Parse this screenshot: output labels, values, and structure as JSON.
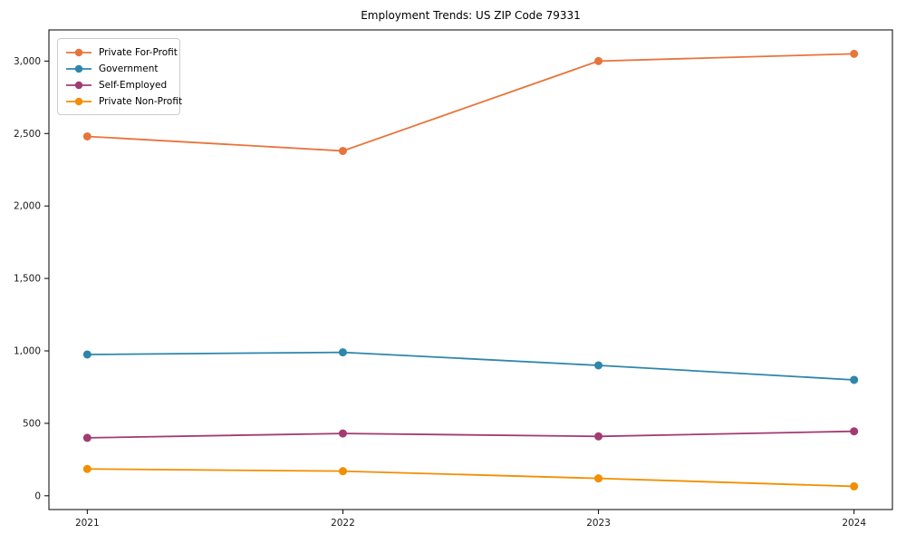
{
  "chart_data": {
    "type": "line",
    "title": "Employment Trends: US ZIP Code 79331",
    "x": [
      2021,
      2022,
      2023,
      2024
    ],
    "categories": [
      "2021",
      "2022",
      "2023",
      "2024"
    ],
    "series": [
      {
        "name": "Private For-Profit",
        "color": "#e8743b",
        "values": [
          2480,
          2380,
          3000,
          3050
        ]
      },
      {
        "name": "Government",
        "color": "#2e86ab",
        "values": [
          975,
          990,
          900,
          800
        ]
      },
      {
        "name": "Self-Employed",
        "color": "#a23b72",
        "values": [
          400,
          430,
          410,
          445
        ]
      },
      {
        "name": "Private Non-Profit",
        "color": "#f18f01",
        "values": [
          185,
          170,
          120,
          65
        ]
      }
    ],
    "xlabel": "",
    "ylabel": "",
    "xlim": [
      2020.85,
      2024.15
    ],
    "ylim": [
      -95,
      3215
    ],
    "ytick_values": [
      0,
      500,
      1000,
      1500,
      2000,
      2500,
      3000
    ],
    "ytick_labels": [
      "0",
      "500",
      "1,000",
      "1,500",
      "2,000",
      "2,500",
      "3,000"
    ],
    "grid": "off",
    "legend_position": "upper-left",
    "axis_color": "#000000",
    "tick_label_color": "#1a1a1a"
  }
}
